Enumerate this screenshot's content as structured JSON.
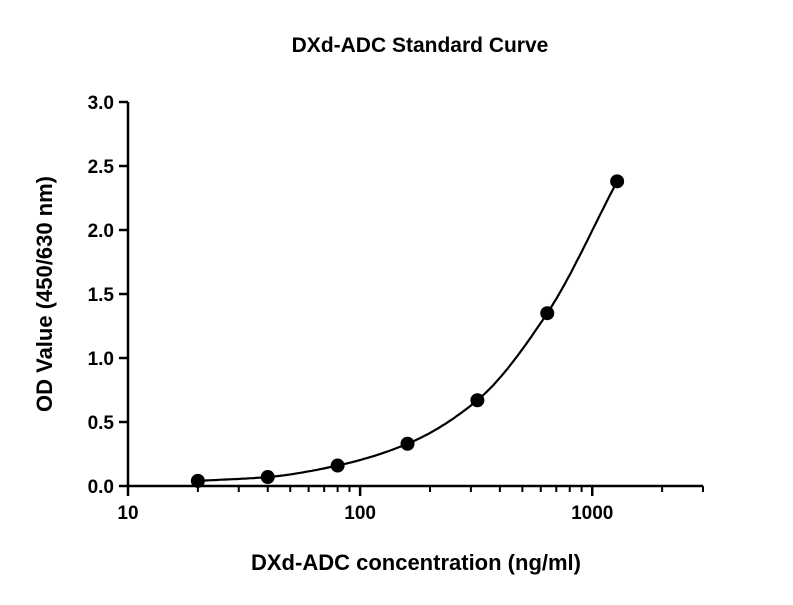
{
  "chart_data": {
    "type": "scatter",
    "title": "DXd-ADC Standard Curve",
    "xlabel": "DXd-ADC concentration (ng/ml)",
    "ylabel": "OD Value (450/630 nm)",
    "x_scale": "log",
    "xlim": [
      10,
      3000
    ],
    "ylim": [
      0,
      3.0
    ],
    "x_ticks": [
      10,
      100,
      1000
    ],
    "x_tick_labels": [
      "10",
      "100",
      "1000"
    ],
    "y_ticks": [
      0,
      0.5,
      1.0,
      1.5,
      2.0,
      2.5,
      3.0
    ],
    "y_tick_labels": [
      "0.0",
      "0.5",
      "1.0",
      "1.5",
      "2.0",
      "2.5",
      "3.0"
    ],
    "grid": false,
    "series": [
      {
        "x": [
          20,
          40,
          80,
          160,
          320,
          640,
          1280
        ],
        "y": [
          0.04,
          0.07,
          0.16,
          0.33,
          0.67,
          1.35,
          2.38
        ],
        "fit_curve": true
      }
    ]
  }
}
